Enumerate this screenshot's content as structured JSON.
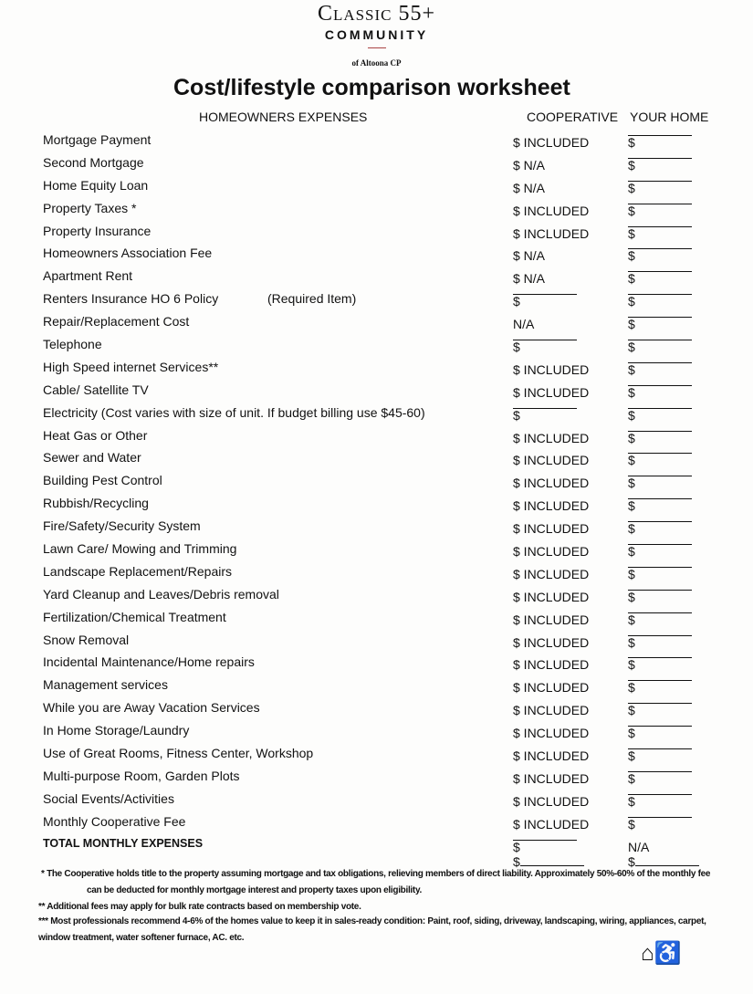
{
  "brand": {
    "line1": "Classic 55+",
    "line2": "COMMUNITY",
    "line3": "of Altoona CP"
  },
  "title": "Cost/lifestyle comparison worksheet",
  "headers": {
    "expenses": "HOMEOWNERS EXPENSES",
    "coop": "COOPERATIVE",
    "home": "YOUR HOME"
  },
  "rows": [
    {
      "label": "Mortgage Payment",
      "coop": "$ INCLUDED",
      "home": "$"
    },
    {
      "label": "Second Mortgage",
      "coop": "$      N/A",
      "home": "$"
    },
    {
      "label": "Home Equity Loan",
      "coop": "$      N/A",
      "home": "$"
    },
    {
      "label": "Property Taxes *",
      "coop": "$ INCLUDED",
      "home": "$"
    },
    {
      "label": "Property Insurance",
      "coop": "$ INCLUDED",
      "home": "$"
    },
    {
      "label": "Homeowners Association Fee",
      "coop": "$      N/A",
      "home": "$"
    },
    {
      "label": "Apartment Rent",
      "coop": "$      N/A",
      "home": "$"
    },
    {
      "label": "Renters Insurance HO 6 Policy",
      "note": "(Required Item)",
      "coop": "$",
      "coop_blank": true,
      "home": "$"
    },
    {
      "label": "Repair/Replacement Cost",
      "coop": "N/A",
      "home": "$"
    },
    {
      "label": "Telephone",
      "coop": "$",
      "coop_blank": true,
      "home": "$"
    },
    {
      "label": "High Speed internet Services**",
      "coop": "$ INCLUDED",
      "home": "$"
    },
    {
      "label": "Cable/ Satellite TV",
      "coop": "$ INCLUDED",
      "home": "$"
    },
    {
      "label": "Electricity  (Cost varies with size of unit. If budget billing use $45-60)",
      "coop": "$",
      "coop_blank": true,
      "home": "$"
    },
    {
      "label": "Heat Gas or Other",
      "coop": "$ INCLUDED",
      "home": "$"
    },
    {
      "label": "Sewer and Water",
      "coop": "$ INCLUDED",
      "home": "$"
    },
    {
      "label": "Building Pest Control",
      "coop": "$ INCLUDED",
      "home": "$"
    },
    {
      "label": "Rubbish/Recycling",
      "coop": "$ INCLUDED",
      "home": "$"
    },
    {
      "label": "Fire/Safety/Security System",
      "coop": "$ INCLUDED",
      "home": "$"
    },
    {
      "label": "Lawn Care/ Mowing and Trimming",
      "coop": "$ INCLUDED",
      "home": "$"
    },
    {
      "label": "Landscape Replacement/Repairs",
      "coop": "$ INCLUDED",
      "home": "$"
    },
    {
      "label": "Yard Cleanup and Leaves/Debris removal",
      "coop": "$ INCLUDED",
      "home": "$"
    },
    {
      "label": "Fertilization/Chemical Treatment",
      "coop": "$ INCLUDED",
      "home": "$"
    },
    {
      "label": "Snow Removal",
      "coop": "$ INCLUDED",
      "home": "$"
    },
    {
      "label": "Incidental Maintenance/Home repairs",
      "coop": "$ INCLUDED",
      "home": "$"
    },
    {
      "label": "Management services",
      "coop": "$ INCLUDED",
      "home": "$"
    },
    {
      "label": "While you are Away Vacation Services",
      "coop": "$ INCLUDED",
      "home": "$"
    },
    {
      "label": "In Home Storage/Laundry",
      "coop": "$ INCLUDED",
      "home": "$"
    },
    {
      "label": "Use of Great Rooms, Fitness Center, Workshop",
      "coop": "$ INCLUDED",
      "home": "$"
    },
    {
      "label": "Multi-purpose Room, Garden Plots",
      "coop": "$ INCLUDED",
      "home": "$"
    },
    {
      "label": "Social Events/Activities",
      "coop": "$ INCLUDED",
      "home": "$"
    },
    {
      "label": "Monthly Cooperative Fee",
      "coop": "$ INCLUDED",
      "home": "$"
    }
  ],
  "total": {
    "label": "TOTAL MONTHLY EXPENSES",
    "coop": "$",
    "home": "N/A"
  },
  "extra": {
    "coop": "$",
    "home": "$"
  },
  "footnotes": [
    "* The Cooperative holds title to the property assuming mortgage and tax obligations, relieving members of direct liability.  Approximately 50%-60% of the monthly fee",
    "can be deducted for monthly mortgage interest and property taxes upon eligibility.",
    "** Additional fees may apply for bulk rate contracts based on membership vote.",
    "*** Most professionals recommend 4-6% of the homes value to keep it in sales-ready condition: Paint, roof, siding, driveway, landscaping, wiring, appliances, carpet,",
    "window treatment, water softener furnace, AC. etc."
  ],
  "icons": [
    "equal-housing-icon",
    "accessibility-icon"
  ]
}
